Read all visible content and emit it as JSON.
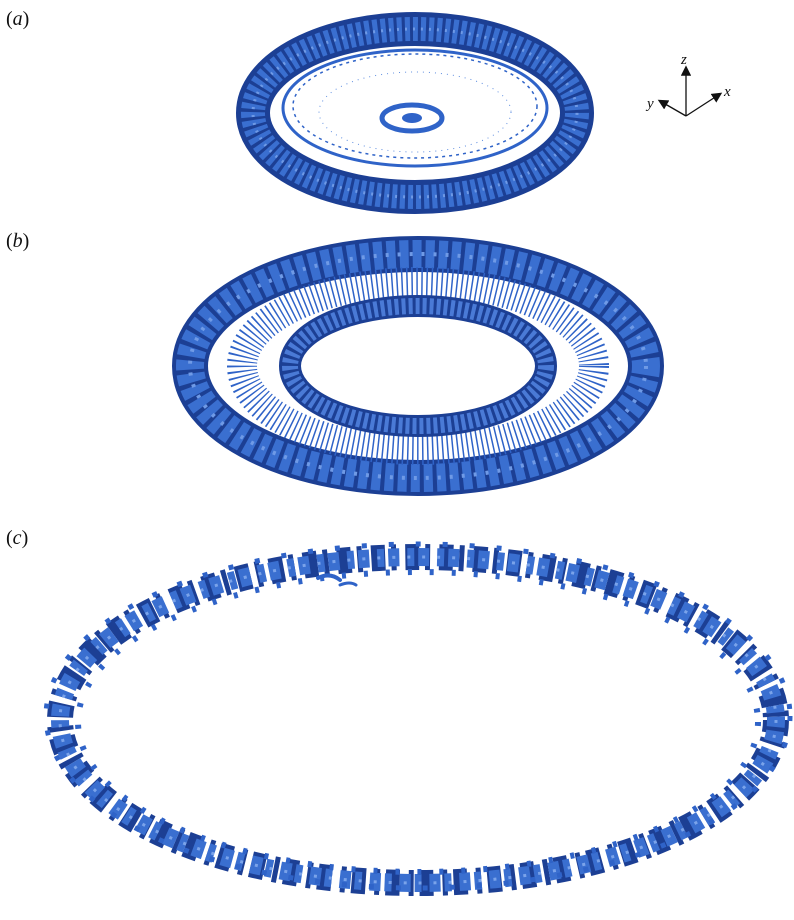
{
  "figure": {
    "panels": [
      {
        "id": "a",
        "open": "(",
        "letter": "a",
        "close": ")"
      },
      {
        "id": "b",
        "open": "(",
        "letter": "b",
        "close": ")"
      },
      {
        "id": "c",
        "open": "(",
        "letter": "c",
        "close": ")"
      }
    ],
    "axes": {
      "x": "x",
      "y": "y",
      "z": "z"
    },
    "colors": {
      "vortex_fill": "#2f63c8",
      "vortex_dark": "#1c3f94",
      "vortex_light": "#5f8ee0",
      "background": "#ffffff"
    }
  }
}
